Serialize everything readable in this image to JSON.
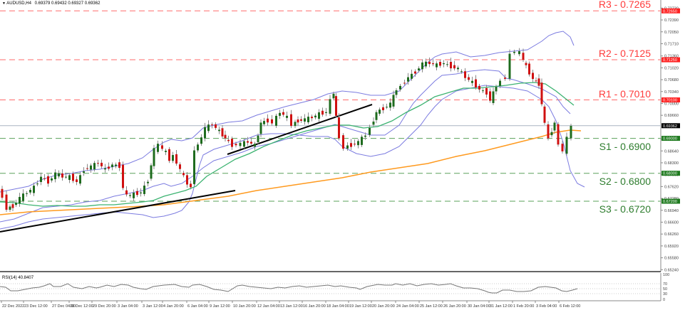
{
  "header": {
    "symbol": "AUDUSD,H4",
    "ohlc": "0.69379 0.69432 0.69327 0.69362",
    "title_full": "AUDUSD,H4  0.69379 0.69432 0.69327 0.69362"
  },
  "indicator": {
    "label": "RSI(14) 40.8407",
    "levels": [
      "100",
      "70",
      "50",
      "30",
      "0"
    ]
  },
  "levels": [
    {
      "name": "R3",
      "label": "R3 - 0.7265",
      "price": 0.7265,
      "tag": "0.72650",
      "color": "#ff4d4d",
      "kind": "resistance"
    },
    {
      "name": "R2",
      "label": "R2 - 0.7125",
      "price": 0.7125,
      "tag": "0.71250",
      "color": "#ff4d4d",
      "kind": "resistance"
    },
    {
      "name": "R1",
      "label": "R1 - 0.7010",
      "price": 0.701,
      "tag": "0.70100",
      "color": "#ff4d4d",
      "kind": "resistance"
    },
    {
      "name": "S1",
      "label": "S1 - 0.6900",
      "price": 0.69,
      "tag": "0.69000",
      "color": "#3a8c3a",
      "kind": "support"
    },
    {
      "name": "S2",
      "label": "S2 - 0.6800",
      "price": 0.68,
      "tag": "0.68000",
      "color": "#3a8c3a",
      "kind": "support"
    },
    {
      "name": "S3",
      "label": "S3 - 0.6720",
      "price": 0.672,
      "tag": "0.67200",
      "color": "#3a8c3a",
      "kind": "support"
    }
  ],
  "current_price": {
    "value": 0.69362,
    "tag": "0.69362"
  },
  "y_axis_ticks": [
    "0.72730",
    "0.72390",
    "0.72050",
    "0.71710",
    "0.71360",
    "0.71020",
    "0.70680",
    "0.70340",
    "0.70000",
    "0.69660",
    "0.68980",
    "0.68640",
    "0.68300",
    "0.67960",
    "0.67620",
    "0.67280",
    "0.66940",
    "0.66600",
    "0.66260",
    "0.65920",
    "0.65580",
    "0.65240"
  ],
  "x_axis_ticks": [
    "22 Dec 2022",
    "23 Dec 12:00",
    "27 Dec 04:00",
    "28 Dec 12:00",
    "29 Dec 20:00",
    "3 Jan 04:00",
    "3 Jan 12:00",
    "4 Jan 20:00",
    "6 Jan 04:00",
    "9 Jan 12:00",
    "10 Jan 20:00",
    "12 Jan 04:00",
    "13 Jan 12:00",
    "16 Jan 20:00",
    "18 Jan 04:00",
    "19 Jan 12:00",
    "20 Jan 20:00",
    "24 Jan 04:00",
    "25 Jan 12:00",
    "26 Jan 20:00",
    "30 Jan 04:00",
    "31 Jan 12:00",
    "1 Feb 20:00",
    "3 Feb 04:00",
    "6 Feb 12:00"
  ],
  "colors": {
    "bull": "#1e6b1e",
    "bear": "#d01010",
    "wick": "#888888",
    "bollinger": "#7b7be0",
    "ma_mid": "#3cb371",
    "ma_long": "#ff9a1f",
    "trendline": "#000000",
    "resistance": "#ff6b6b",
    "support": "#5aa05a"
  },
  "chart_data": {
    "type": "candlestick",
    "title": "AUDUSD,H4",
    "xlabel": "",
    "ylabel": "Price",
    "ylim": [
      0.6524,
      0.729
    ],
    "grid": false,
    "categories": [
      "22 Dec 2022",
      "23 Dec 12:00",
      "27 Dec 04:00",
      "28 Dec 12:00",
      "29 Dec 20:00",
      "3 Jan 04:00",
      "3 Jan 12:00",
      "4 Jan 20:00",
      "6 Jan 04:00",
      "9 Jan 12:00",
      "10 Jan 20:00",
      "12 Jan 04:00",
      "13 Jan 12:00",
      "16 Jan 20:00",
      "18 Jan 04:00",
      "19 Jan 12:00",
      "20 Jan 20:00",
      "24 Jan 04:00",
      "25 Jan 12:00",
      "26 Jan 20:00",
      "30 Jan 04:00",
      "31 Jan 12:00",
      "1 Feb 20:00",
      "3 Feb 04:00",
      "6 Feb 12:00"
    ],
    "series": [
      {
        "name": "Close (approx.)",
        "values": [
          0.67,
          0.674,
          0.679,
          0.68,
          0.681,
          0.678,
          0.687,
          0.6845,
          0.674,
          0.694,
          0.692,
          0.694,
          0.6985,
          0.696,
          0.703,
          0.691,
          0.692,
          0.701,
          0.711,
          0.7115,
          0.707,
          0.706,
          0.714,
          0.698,
          0.6936
        ]
      },
      {
        "name": "MA long (orange)",
        "values": [
          0.675,
          0.676,
          0.677,
          0.6775,
          0.678,
          0.6782,
          0.6785,
          0.679,
          0.6795,
          0.6808,
          0.682,
          0.6835,
          0.6848,
          0.6862,
          0.6875,
          0.6885,
          0.6892,
          0.6905,
          0.6912,
          0.6918,
          0.6922,
          0.6926,
          0.6932,
          0.6938,
          0.6936
        ]
      },
      {
        "name": "MA mid (green)",
        "values": [
          0.676,
          0.6785,
          0.6795,
          0.68,
          0.6805,
          0.6805,
          0.681,
          0.6815,
          0.684,
          0.686,
          0.688,
          0.69,
          0.692,
          0.6935,
          0.6945,
          0.6948,
          0.6965,
          0.7,
          0.7035,
          0.706,
          0.707,
          0.7068,
          0.7075,
          0.705,
          0.701
        ]
      }
    ],
    "horizontal_levels": [
      {
        "label": "R3 - 0.7265",
        "value": 0.7265
      },
      {
        "label": "R2 - 0.7125",
        "value": 0.7125
      },
      {
        "label": "R1 - 0.7010",
        "value": 0.701
      },
      {
        "label": "S1 - 0.6900",
        "value": 0.69
      },
      {
        "label": "S2 - 0.6800",
        "value": 0.68
      },
      {
        "label": "S3 - 0.6720",
        "value": 0.672
      }
    ],
    "current_price": 0.69362,
    "subchart": {
      "type": "line",
      "title": "RSI(14) 40.8407",
      "ylim": [
        0,
        100
      ],
      "levels": [
        70,
        50,
        30
      ],
      "last_value": 40.8407
    },
    "legend": "none"
  }
}
